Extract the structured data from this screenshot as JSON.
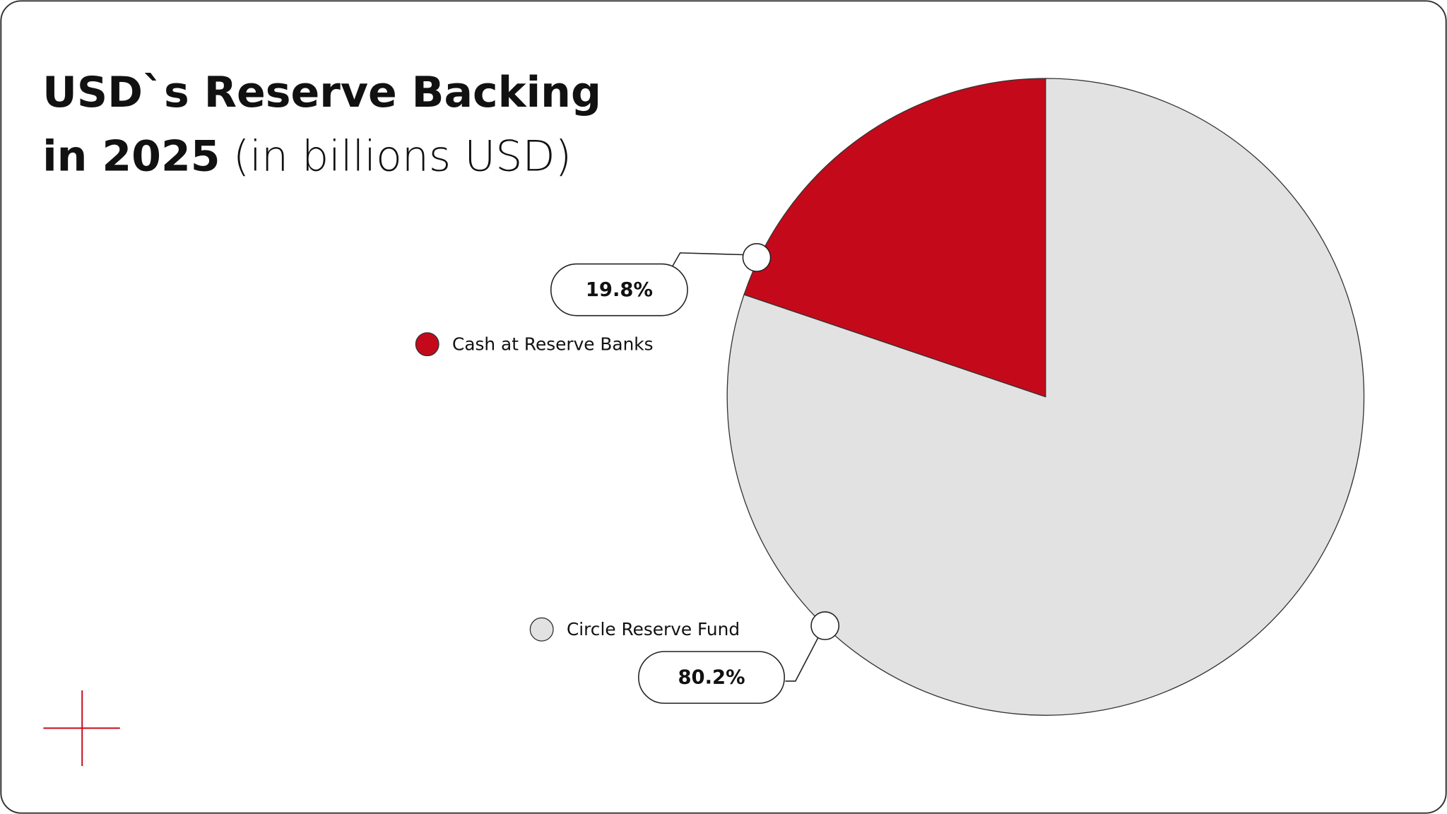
{
  "chart_data": {
    "type": "pie",
    "title": "USD`s Reserve Backing",
    "title_year": "in 2025",
    "subtitle": "(in billions USD)",
    "categories": [
      "Cash at Reserve Banks",
      "Circle Reserve Fund"
    ],
    "values": [
      19.8,
      80.2
    ],
    "value_labels": [
      "19.8%",
      "80.2%"
    ],
    "colors": [
      "#c40a1a",
      "#e2e2e2"
    ]
  }
}
